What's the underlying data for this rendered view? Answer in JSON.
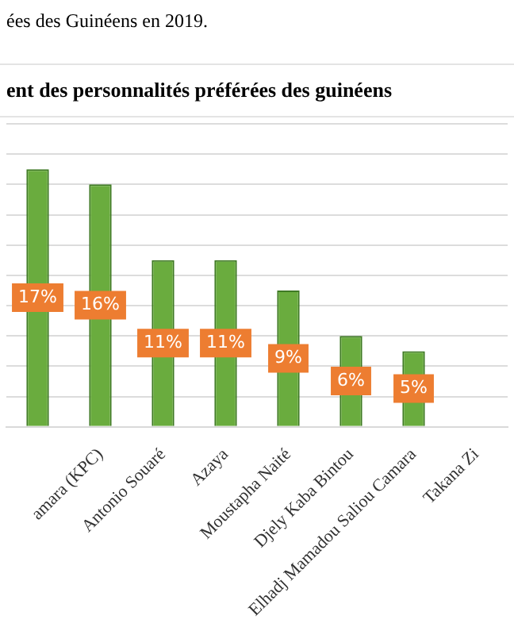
{
  "chart_data": {
    "type": "bar",
    "title": "ent des personnalités préférées des guinéens",
    "annotations": [
      "ées des Guinéens en 2019."
    ],
    "categories": [
      null,
      "amara (KPC)",
      "Antonio Souaré",
      "Azaya",
      "Moustapha Naité",
      "Djely Kaba Bintou",
      "Elhadj Mamadou Saliou Camara",
      "Takana Zi"
    ],
    "values": [
      17,
      16,
      11,
      11,
      9,
      6,
      5,
      null
    ],
    "value_labels": [
      "17%",
      "16%",
      "11%",
      "11%",
      "9%",
      "6%",
      "5%",
      null
    ],
    "color": "#6aac3e",
    "ylim": [
      0,
      20
    ],
    "yticks": [
      0,
      2,
      4,
      6,
      8,
      10,
      12,
      14,
      16,
      18,
      20
    ],
    "grid": "y",
    "tick_labels": "x",
    "legend": false
  }
}
